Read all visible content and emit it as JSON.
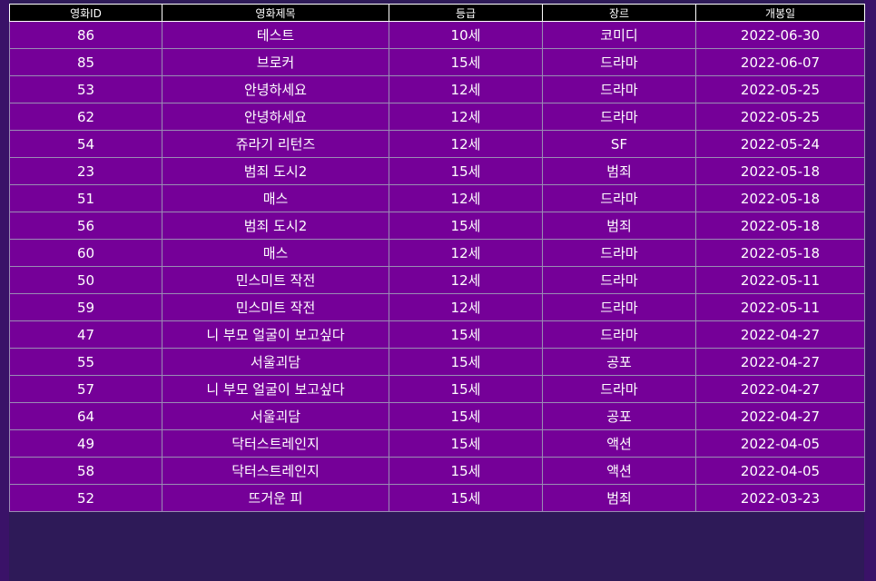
{
  "colors": {
    "page_bg": "#2e1a58",
    "header_bg": "#000000",
    "row_bg": "#750098",
    "text": "#ffffff"
  },
  "table": {
    "headers": [
      "영화ID",
      "영화제목",
      "등급",
      "장르",
      "개봉일"
    ],
    "rows": [
      [
        "86",
        "테스트",
        "10세",
        "코미디",
        "2022-06-30"
      ],
      [
        "85",
        "브로커",
        "15세",
        "드라마",
        "2022-06-07"
      ],
      [
        "53",
        "안녕하세요",
        "12세",
        "드라마",
        "2022-05-25"
      ],
      [
        "62",
        "안녕하세요",
        "12세",
        "드라마",
        "2022-05-25"
      ],
      [
        "54",
        "쥬라기 리턴즈",
        "12세",
        "SF",
        "2022-05-24"
      ],
      [
        "23",
        "범죄 도시2",
        "15세",
        "범죄",
        "2022-05-18"
      ],
      [
        "51",
        "매스",
        "12세",
        "드라마",
        "2022-05-18"
      ],
      [
        "56",
        "범죄 도시2",
        "15세",
        "범죄",
        "2022-05-18"
      ],
      [
        "60",
        "매스",
        "12세",
        "드라마",
        "2022-05-18"
      ],
      [
        "50",
        "민스미트 작전",
        "12세",
        "드라마",
        "2022-05-11"
      ],
      [
        "59",
        "민스미트 작전",
        "12세",
        "드라마",
        "2022-05-11"
      ],
      [
        "47",
        "니 부모 얼굴이 보고싶다",
        "15세",
        "드라마",
        "2022-04-27"
      ],
      [
        "55",
        "서울괴담",
        "15세",
        "공포",
        "2022-04-27"
      ],
      [
        "57",
        "니 부모 얼굴이 보고싶다",
        "15세",
        "드라마",
        "2022-04-27"
      ],
      [
        "64",
        "서울괴담",
        "15세",
        "공포",
        "2022-04-27"
      ],
      [
        "49",
        "닥터스트레인지",
        "15세",
        "액션",
        "2022-04-05"
      ],
      [
        "58",
        "닥터스트레인지",
        "15세",
        "액션",
        "2022-04-05"
      ],
      [
        "52",
        "뜨거운 피",
        "15세",
        "범죄",
        "2022-03-23"
      ]
    ]
  }
}
